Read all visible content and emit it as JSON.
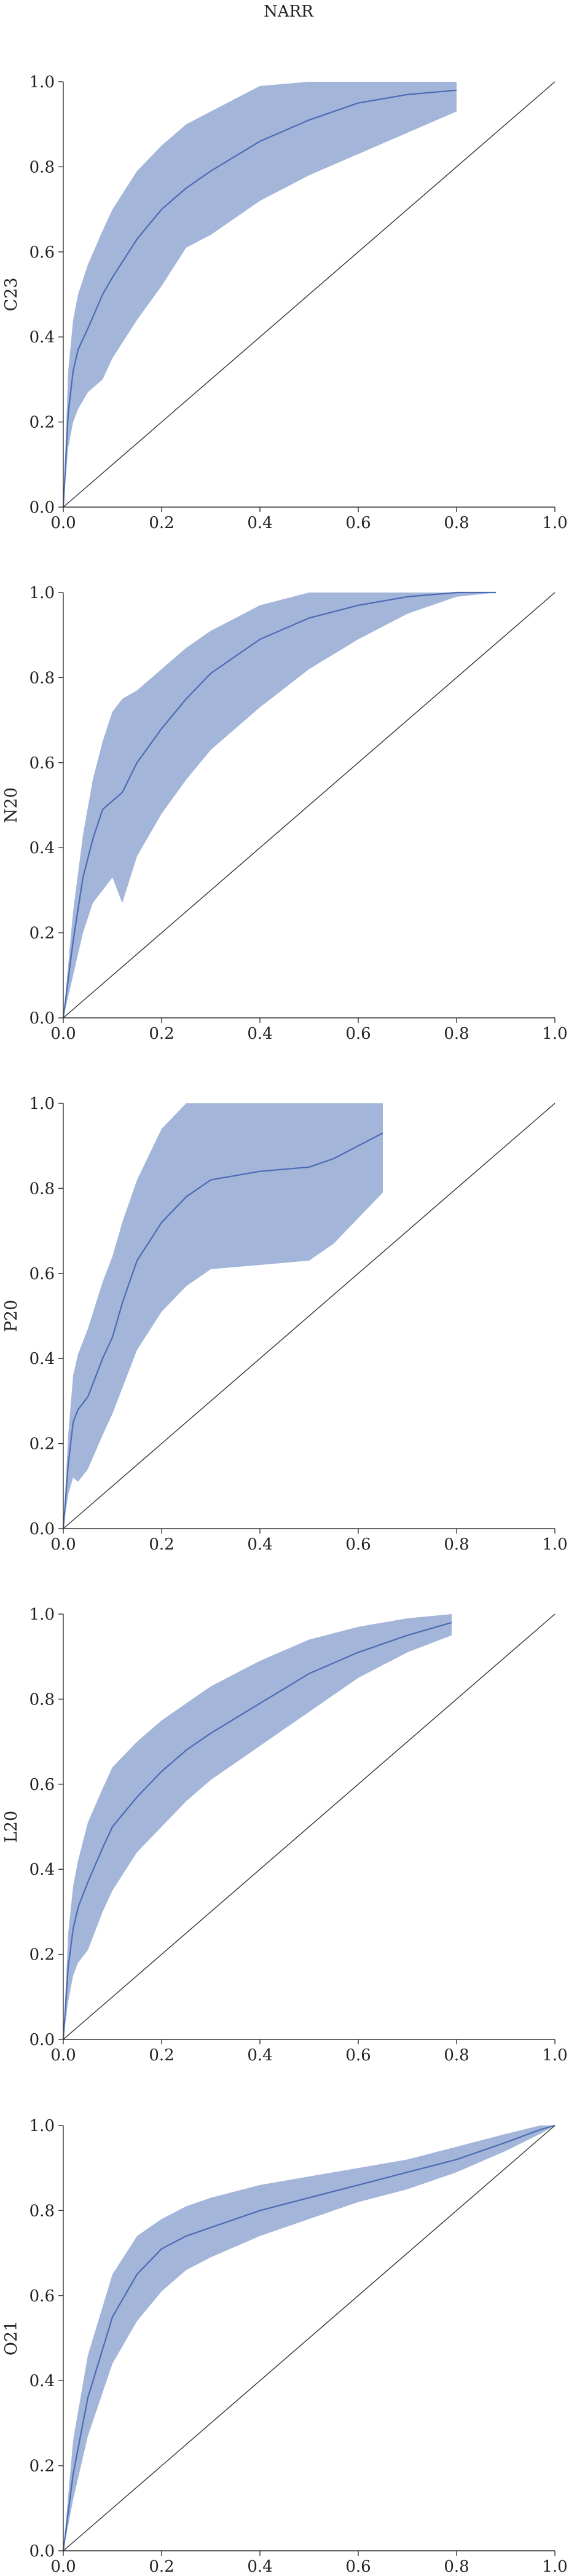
{
  "figure_title": "NARR",
  "colors": {
    "line": "#4a6bb5",
    "band": "#a3b5d8",
    "diagonal": "#333333",
    "axis": "#333333"
  },
  "chart_data": [
    {
      "type": "line",
      "title": "",
      "ylabel": "C23",
      "xlabel": "",
      "xlim": [
        0,
        1
      ],
      "ylim": [
        0,
        1
      ],
      "xticks": [
        "0.0",
        "0.2",
        "0.4",
        "0.6",
        "0.8",
        "1.0"
      ],
      "yticks": [
        "0.0",
        "0.2",
        "0.4",
        "0.6",
        "0.8",
        "1.0"
      ],
      "diagonal": true,
      "grid": false,
      "series": [
        {
          "x": [
            0.0,
            0.01,
            0.02,
            0.03,
            0.05,
            0.08,
            0.1,
            0.15,
            0.2,
            0.25,
            0.3,
            0.4,
            0.5,
            0.6,
            0.7,
            0.8
          ],
          "mean": [
            0.0,
            0.22,
            0.32,
            0.37,
            0.42,
            0.5,
            0.54,
            0.63,
            0.7,
            0.75,
            0.79,
            0.86,
            0.91,
            0.95,
            0.97,
            0.98
          ],
          "lower": [
            0.0,
            0.14,
            0.2,
            0.23,
            0.27,
            0.3,
            0.35,
            0.44,
            0.52,
            0.61,
            0.64,
            0.72,
            0.78,
            0.83,
            0.88,
            0.93
          ],
          "upper": [
            0.0,
            0.32,
            0.44,
            0.5,
            0.57,
            0.65,
            0.7,
            0.79,
            0.85,
            0.9,
            0.93,
            0.99,
            1.0,
            1.0,
            1.0,
            1.0
          ]
        }
      ]
    },
    {
      "type": "line",
      "title": "",
      "ylabel": "N20",
      "xlabel": "",
      "xlim": [
        0,
        1
      ],
      "ylim": [
        0,
        1
      ],
      "xticks": [
        "0.0",
        "0.2",
        "0.4",
        "0.6",
        "0.8",
        "1.0"
      ],
      "yticks": [
        "0.0",
        "0.2",
        "0.4",
        "0.6",
        "0.8",
        "1.0"
      ],
      "diagonal": true,
      "grid": false,
      "series": [
        {
          "x": [
            0.0,
            0.02,
            0.04,
            0.06,
            0.08,
            0.1,
            0.12,
            0.15,
            0.2,
            0.25,
            0.3,
            0.4,
            0.5,
            0.6,
            0.7,
            0.8,
            0.88
          ],
          "mean": [
            0.0,
            0.18,
            0.33,
            0.42,
            0.49,
            0.51,
            0.53,
            0.6,
            0.68,
            0.75,
            0.81,
            0.89,
            0.94,
            0.97,
            0.99,
            1.0,
            1.0
          ],
          "lower": [
            0.0,
            0.1,
            0.2,
            0.27,
            0.3,
            0.33,
            0.27,
            0.38,
            0.48,
            0.56,
            0.63,
            0.73,
            0.82,
            0.89,
            0.95,
            0.99,
            1.0
          ],
          "upper": [
            0.0,
            0.25,
            0.43,
            0.56,
            0.65,
            0.72,
            0.75,
            0.77,
            0.82,
            0.87,
            0.91,
            0.97,
            1.0,
            1.0,
            1.0,
            1.0,
            1.0
          ]
        }
      ]
    },
    {
      "type": "line",
      "title": "",
      "ylabel": "P20",
      "xlabel": "",
      "xlim": [
        0,
        1
      ],
      "ylim": [
        0,
        1
      ],
      "xticks": [
        "0.0",
        "0.2",
        "0.4",
        "0.6",
        "0.8",
        "1.0"
      ],
      "yticks": [
        "0.0",
        "0.2",
        "0.4",
        "0.6",
        "0.8",
        "1.0"
      ],
      "diagonal": true,
      "grid": false,
      "series": [
        {
          "x": [
            0.0,
            0.01,
            0.02,
            0.03,
            0.05,
            0.08,
            0.1,
            0.12,
            0.15,
            0.2,
            0.25,
            0.3,
            0.4,
            0.5,
            0.55,
            0.6,
            0.65
          ],
          "mean": [
            0.0,
            0.15,
            0.25,
            0.28,
            0.31,
            0.4,
            0.45,
            0.53,
            0.63,
            0.72,
            0.78,
            0.82,
            0.84,
            0.85,
            0.87,
            0.9,
            0.93
          ],
          "lower": [
            0.0,
            0.08,
            0.12,
            0.11,
            0.14,
            0.22,
            0.27,
            0.33,
            0.42,
            0.51,
            0.57,
            0.61,
            0.62,
            0.63,
            0.67,
            0.73,
            0.79
          ],
          "upper": [
            0.0,
            0.22,
            0.36,
            0.41,
            0.47,
            0.58,
            0.64,
            0.72,
            0.82,
            0.94,
            1.0,
            1.0,
            1.0,
            1.0,
            1.0,
            1.0,
            1.0
          ]
        }
      ]
    },
    {
      "type": "line",
      "title": "",
      "ylabel": "L20",
      "xlabel": "",
      "xlim": [
        0,
        1
      ],
      "ylim": [
        0,
        1
      ],
      "xticks": [
        "0.0",
        "0.2",
        "0.4",
        "0.6",
        "0.8",
        "1.0"
      ],
      "yticks": [
        "0.0",
        "0.2",
        "0.4",
        "0.6",
        "0.8",
        "1.0"
      ],
      "diagonal": true,
      "grid": false,
      "series": [
        {
          "x": [
            0.0,
            0.01,
            0.02,
            0.03,
            0.05,
            0.08,
            0.1,
            0.15,
            0.2,
            0.25,
            0.3,
            0.4,
            0.5,
            0.6,
            0.7,
            0.79
          ],
          "mean": [
            0.0,
            0.17,
            0.26,
            0.31,
            0.37,
            0.45,
            0.5,
            0.57,
            0.63,
            0.68,
            0.72,
            0.79,
            0.86,
            0.91,
            0.95,
            0.98
          ],
          "lower": [
            0.0,
            0.09,
            0.15,
            0.18,
            0.21,
            0.3,
            0.35,
            0.44,
            0.5,
            0.56,
            0.61,
            0.69,
            0.77,
            0.85,
            0.91,
            0.95
          ],
          "upper": [
            0.0,
            0.25,
            0.36,
            0.42,
            0.51,
            0.59,
            0.64,
            0.7,
            0.75,
            0.79,
            0.83,
            0.89,
            0.94,
            0.97,
            0.99,
            1.0
          ]
        }
      ]
    },
    {
      "type": "line",
      "title": "",
      "ylabel": "O21",
      "xlabel": "",
      "xlim": [
        0,
        1
      ],
      "ylim": [
        0,
        1
      ],
      "xticks": [
        "0.0",
        "0.2",
        "0.4",
        "0.6",
        "0.8",
        "1.0"
      ],
      "yticks": [
        "0.0",
        "0.2",
        "0.4",
        "0.6",
        "0.8",
        "1.0"
      ],
      "diagonal": true,
      "grid": false,
      "series": [
        {
          "x": [
            0.0,
            0.02,
            0.05,
            0.1,
            0.15,
            0.2,
            0.25,
            0.3,
            0.4,
            0.5,
            0.6,
            0.7,
            0.8,
            0.9,
            0.97,
            1.0
          ],
          "mean": [
            0.0,
            0.18,
            0.36,
            0.55,
            0.65,
            0.71,
            0.74,
            0.76,
            0.8,
            0.83,
            0.86,
            0.89,
            0.92,
            0.96,
            0.99,
            1.0
          ],
          "lower": [
            0.0,
            0.12,
            0.27,
            0.44,
            0.54,
            0.61,
            0.66,
            0.69,
            0.74,
            0.78,
            0.82,
            0.85,
            0.89,
            0.94,
            0.98,
            1.0
          ],
          "upper": [
            0.0,
            0.26,
            0.46,
            0.65,
            0.74,
            0.78,
            0.81,
            0.83,
            0.86,
            0.88,
            0.9,
            0.92,
            0.95,
            0.98,
            1.0,
            1.0
          ]
        }
      ]
    }
  ]
}
